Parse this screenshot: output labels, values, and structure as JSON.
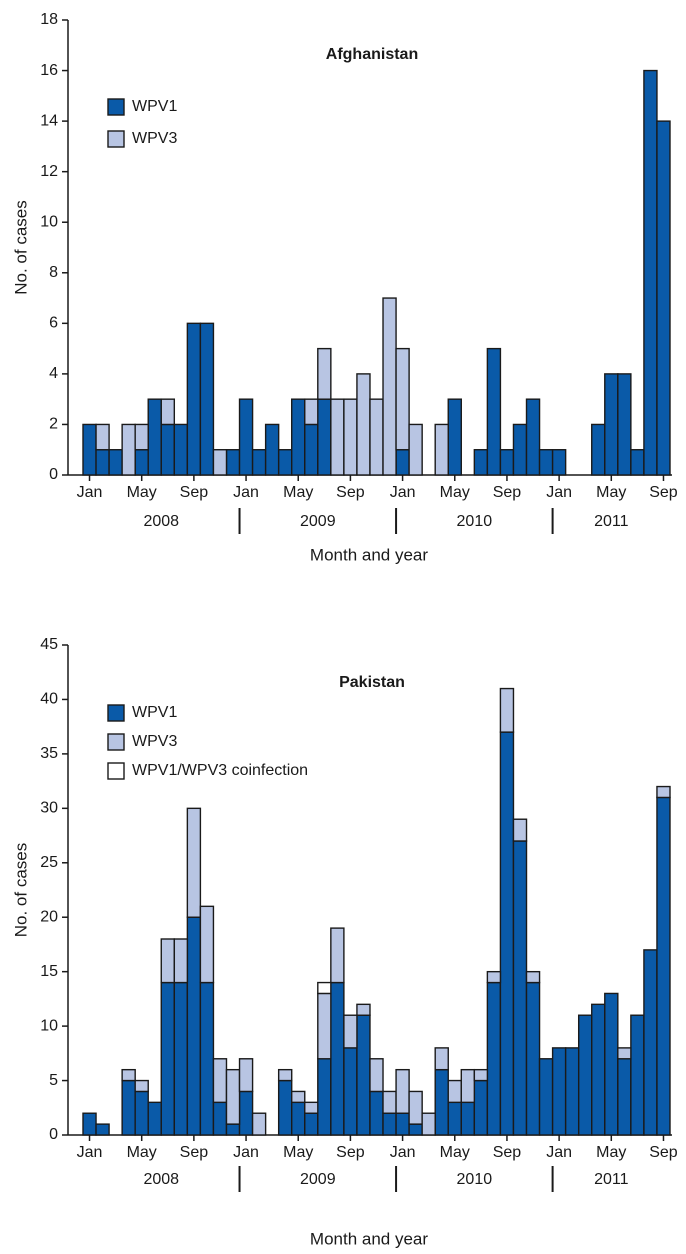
{
  "chart_data": [
    {
      "type": "bar",
      "stacked": true,
      "title": "Afghanistan",
      "xlabel": "Month and year",
      "ylabel": "No. of cases",
      "categories": [
        "Jan",
        null,
        null,
        null,
        "May",
        null,
        null,
        null,
        "Sep",
        null,
        null,
        null,
        "Jan",
        null,
        null,
        null,
        "May",
        null,
        null,
        null,
        "Sep",
        null,
        null,
        null,
        "Jan",
        null,
        null,
        null,
        "May",
        null,
        null,
        null,
        "Sep",
        null,
        null,
        null,
        "Jan",
        null,
        null,
        null,
        "May",
        null,
        null,
        null,
        "Sep"
      ],
      "year_labels": [
        "2008",
        "2009",
        "2010",
        "2011"
      ],
      "legend": "upper left",
      "series": [
        {
          "name": "WPV1",
          "color": "#0a5aa8",
          "values": [
            2,
            1,
            1,
            0,
            1,
            3,
            2,
            2,
            6,
            6,
            0,
            1,
            3,
            1,
            2,
            1,
            3,
            2,
            3,
            0,
            0,
            0,
            0,
            0,
            1,
            0,
            0,
            0,
            3,
            0,
            1,
            5,
            1,
            2,
            3,
            1,
            1,
            0,
            0,
            2,
            4,
            4,
            1,
            16,
            14
          ]
        },
        {
          "name": "WPV3",
          "color": "#b8c5e3",
          "values": [
            0,
            1,
            0,
            2,
            1,
            0,
            1,
            0,
            0,
            0,
            1,
            0,
            0,
            0,
            0,
            0,
            0,
            1,
            2,
            3,
            3,
            4,
            3,
            7,
            4,
            2,
            0,
            2,
            0,
            0,
            0,
            0,
            0,
            0,
            0,
            0,
            0,
            0,
            0,
            0,
            0,
            0,
            0,
            0,
            0
          ]
        }
      ],
      "ylim": [
        0,
        18
      ],
      "yticks": [
        0,
        2,
        4,
        6,
        8,
        10,
        12,
        14,
        16,
        18
      ]
    },
    {
      "type": "bar",
      "stacked": true,
      "title": "Pakistan",
      "xlabel": "Month and year",
      "ylabel": "No. of cases",
      "categories": [
        "Jan",
        null,
        null,
        null,
        "May",
        null,
        null,
        null,
        "Sep",
        null,
        null,
        null,
        "Jan",
        null,
        null,
        null,
        "May",
        null,
        null,
        null,
        "Sep",
        null,
        null,
        null,
        "Jan",
        null,
        null,
        null,
        "May",
        null,
        null,
        null,
        "Sep",
        null,
        null,
        null,
        "Jan",
        null,
        null,
        null,
        "May",
        null,
        null,
        null,
        "Sep"
      ],
      "year_labels": [
        "2008",
        "2009",
        "2010",
        "2011"
      ],
      "legend": "upper left",
      "series": [
        {
          "name": "WPV1",
          "color": "#0a5aa8",
          "values": [
            2,
            1,
            0,
            5,
            4,
            3,
            14,
            14,
            20,
            14,
            3,
            1,
            4,
            0,
            0,
            5,
            3,
            2,
            7,
            14,
            8,
            11,
            4,
            2,
            2,
            1,
            0,
            6,
            3,
            3,
            5,
            14,
            37,
            27,
            14,
            7,
            8,
            8,
            11,
            12,
            13,
            7,
            11,
            17,
            31
          ]
        },
        {
          "name": "WPV3",
          "color": "#b8c5e3",
          "values": [
            0,
            0,
            0,
            1,
            1,
            0,
            4,
            4,
            10,
            7,
            4,
            5,
            3,
            2,
            0,
            1,
            1,
            1,
            6,
            5,
            3,
            1,
            3,
            2,
            4,
            3,
            2,
            2,
            2,
            3,
            1,
            1,
            4,
            2,
            1,
            0,
            0,
            0,
            0,
            0,
            0,
            1,
            0,
            0,
            1
          ]
        },
        {
          "name": "WPV1/WPV3 coinfection",
          "color": "#ffffff",
          "values": [
            0,
            0,
            0,
            0,
            0,
            0,
            0,
            0,
            0,
            0,
            0,
            0,
            0,
            0,
            0,
            0,
            0,
            0,
            1,
            0,
            0,
            0,
            0,
            0,
            0,
            0,
            0,
            0,
            0,
            0,
            0,
            0,
            0,
            0,
            0,
            0,
            0,
            0,
            0,
            0,
            0,
            0,
            0,
            0,
            0
          ]
        }
      ],
      "ylim": [
        0,
        45
      ],
      "yticks": [
        0,
        5,
        10,
        15,
        20,
        25,
        30,
        35,
        40,
        45
      ]
    }
  ]
}
